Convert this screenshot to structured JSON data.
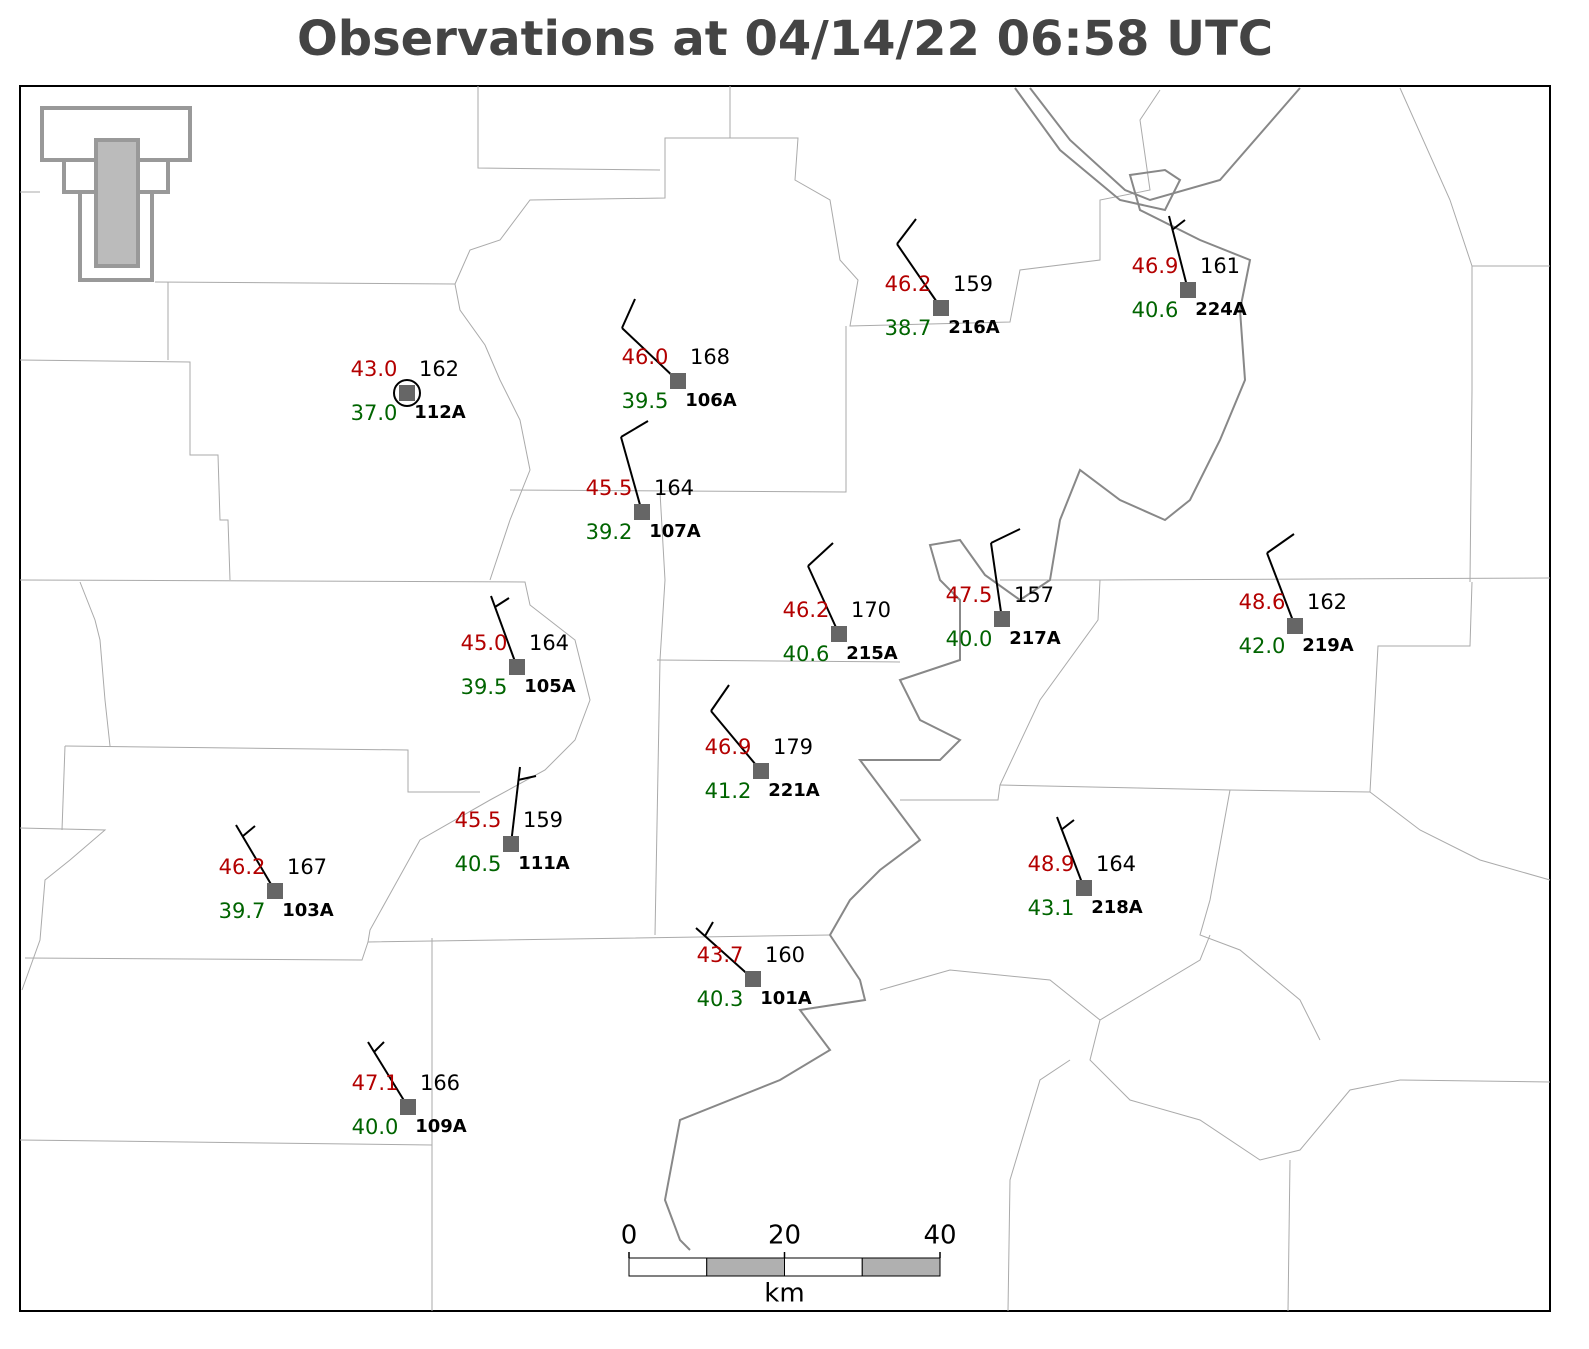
{
  "title": "Observations at 04/14/22 06:58 UTC",
  "stations": [
    {
      "id": "112A",
      "temperature": "43.0",
      "dewpoint": "37.0",
      "pressure": "162"
    },
    {
      "id": "106A",
      "temperature": "46.0",
      "dewpoint": "39.5",
      "pressure": "168"
    },
    {
      "id": "107A",
      "temperature": "45.5",
      "dewpoint": "39.2",
      "pressure": "164"
    },
    {
      "id": "216A",
      "temperature": "46.2",
      "dewpoint": "38.7",
      "pressure": "159"
    },
    {
      "id": "224A",
      "temperature": "46.9",
      "dewpoint": "40.6",
      "pressure": "161"
    },
    {
      "id": "105A",
      "temperature": "45.0",
      "dewpoint": "39.5",
      "pressure": "164"
    },
    {
      "id": "215A",
      "temperature": "46.2",
      "dewpoint": "40.6",
      "pressure": "170"
    },
    {
      "id": "217A",
      "temperature": "47.5",
      "dewpoint": "40.0",
      "pressure": "157"
    },
    {
      "id": "219A",
      "temperature": "48.6",
      "dewpoint": "42.0",
      "pressure": "162"
    },
    {
      "id": "221A",
      "temperature": "46.9",
      "dewpoint": "41.2",
      "pressure": "179"
    },
    {
      "id": "111A",
      "temperature": "45.5",
      "dewpoint": "40.5",
      "pressure": "159"
    },
    {
      "id": "103A",
      "temperature": "46.2",
      "dewpoint": "39.7",
      "pressure": "167"
    },
    {
      "id": "218A",
      "temperature": "48.9",
      "dewpoint": "43.1",
      "pressure": "164"
    },
    {
      "id": "101A",
      "temperature": "43.7",
      "dewpoint": "40.3",
      "pressure": "160"
    },
    {
      "id": "109A",
      "temperature": "47.1",
      "dewpoint": "40.0",
      "pressure": "166"
    }
  ],
  "scale_bar": {
    "ticks": [
      0,
      20,
      40
    ],
    "unit": "km"
  }
}
